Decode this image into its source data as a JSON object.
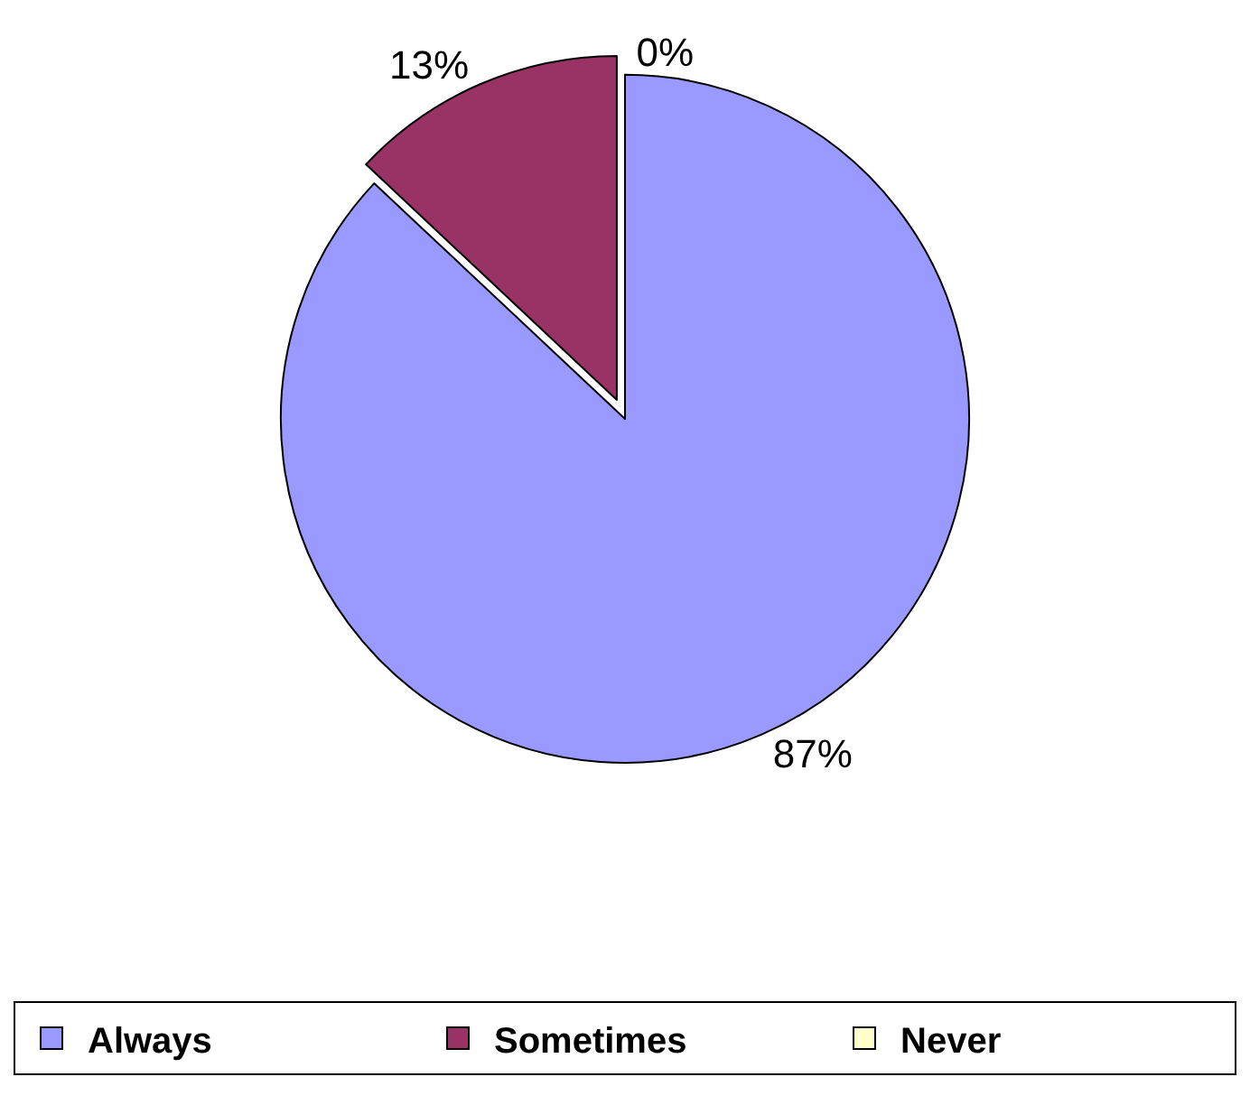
{
  "chart_data": {
    "type": "pie",
    "categories": [
      "Always",
      "Sometimes",
      "Never"
    ],
    "values": [
      87,
      13,
      0
    ],
    "value_labels": [
      "87%",
      "13%",
      "0%"
    ],
    "colors": [
      "#9999ff",
      "#993366",
      "#ffffcc"
    ],
    "legend": "bottom"
  }
}
